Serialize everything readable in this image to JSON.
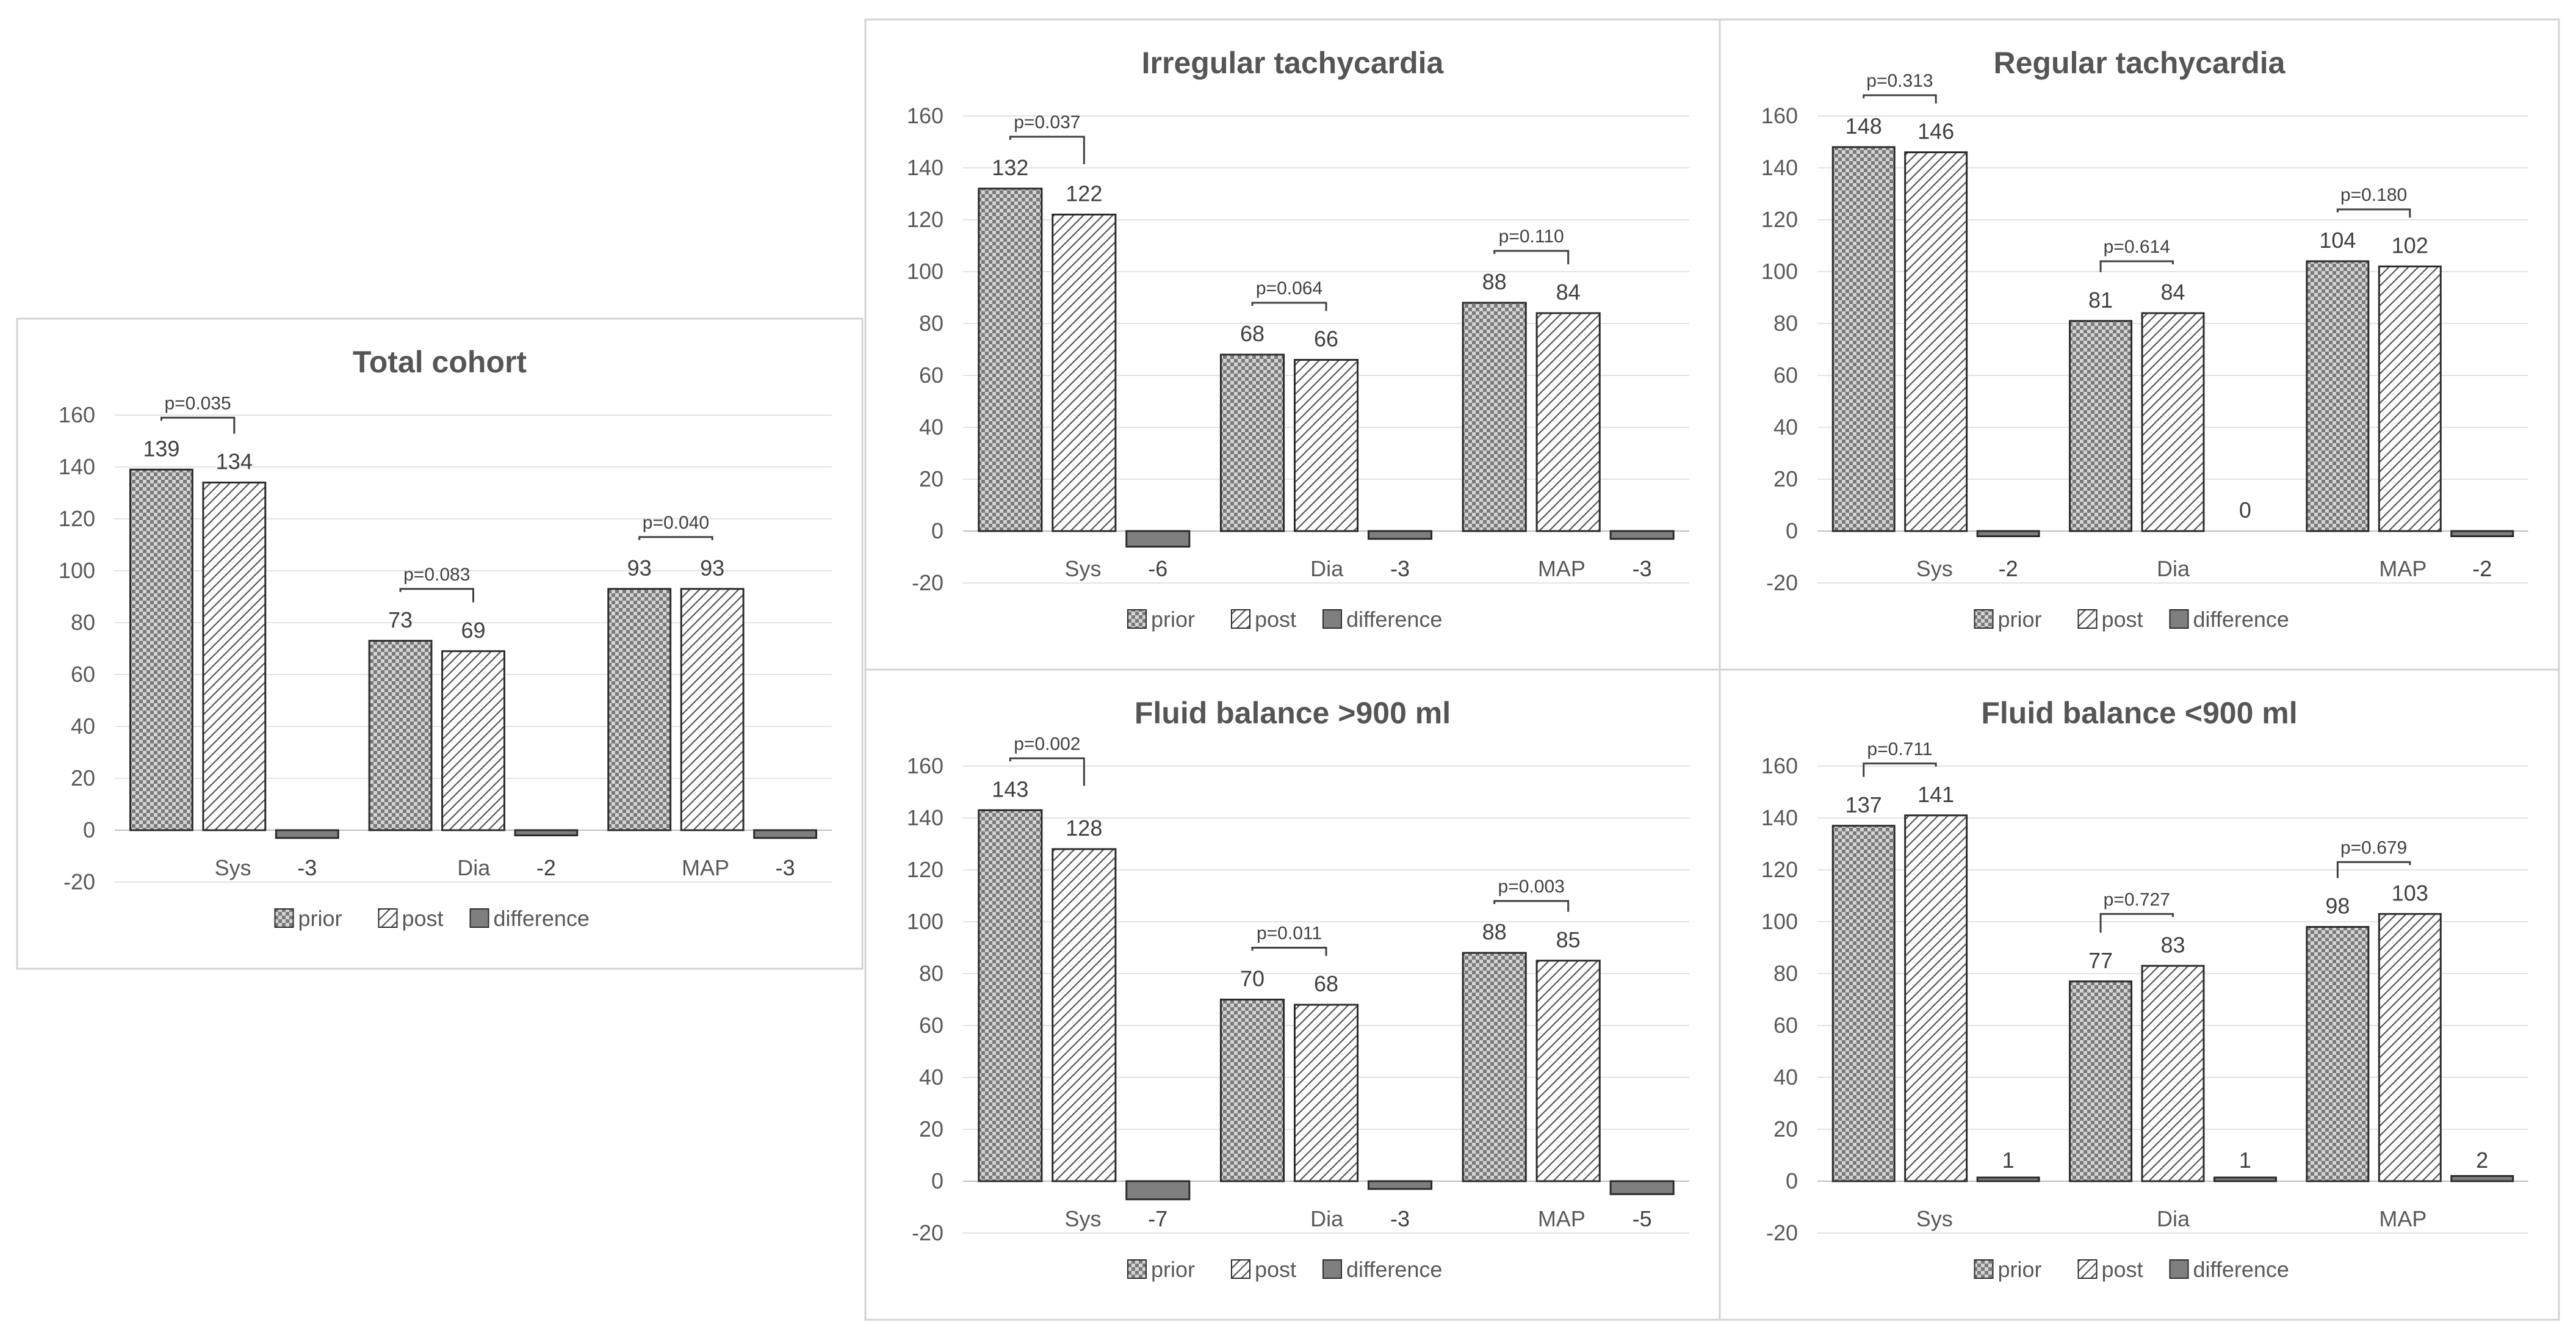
{
  "chart_data": [
    {
      "id": "total",
      "type": "bar",
      "title": "Total cohort",
      "categories": [
        "Sys",
        "Dia",
        "MAP"
      ],
      "series": [
        {
          "name": "prior",
          "values": [
            139,
            73,
            93
          ]
        },
        {
          "name": "post",
          "values": [
            134,
            69,
            93
          ]
        },
        {
          "name": "difference",
          "values": [
            -3,
            -2,
            -3
          ]
        }
      ],
      "p_values": [
        "p=0.035",
        "p=0.083",
        "p=0.040"
      ],
      "ylim": [
        -20,
        160
      ],
      "yticks": [
        -20,
        0,
        20,
        40,
        60,
        80,
        100,
        120,
        140,
        160
      ],
      "grid": true,
      "legend": "bottom",
      "xlabel": "",
      "ylabel": ""
    },
    {
      "id": "irregular",
      "type": "bar",
      "title": "Irregular tachycardia",
      "categories": [
        "Sys",
        "Dia",
        "MAP"
      ],
      "series": [
        {
          "name": "prior",
          "values": [
            132,
            68,
            88
          ]
        },
        {
          "name": "post",
          "values": [
            122,
            66,
            84
          ]
        },
        {
          "name": "difference",
          "values": [
            -6,
            -3,
            -3
          ]
        }
      ],
      "p_values": [
        "p=0.037",
        "p=0.064",
        "p=0.110"
      ],
      "ylim": [
        -20,
        160
      ],
      "yticks": [
        -20,
        0,
        20,
        40,
        60,
        80,
        100,
        120,
        140,
        160
      ],
      "grid": true,
      "legend": "bottom",
      "xlabel": "",
      "ylabel": ""
    },
    {
      "id": "regular",
      "type": "bar",
      "title": "Regular tachycardia",
      "categories": [
        "Sys",
        "Dia",
        "MAP"
      ],
      "series": [
        {
          "name": "prior",
          "values": [
            148,
            81,
            104
          ]
        },
        {
          "name": "post",
          "values": [
            146,
            84,
            102
          ]
        },
        {
          "name": "difference",
          "values": [
            -2,
            0,
            -2
          ]
        }
      ],
      "p_values": [
        "p=0.313",
        "p=0.614",
        "p=0.180"
      ],
      "ylim": [
        -20,
        160
      ],
      "yticks": [
        -20,
        0,
        20,
        40,
        60,
        80,
        100,
        120,
        140,
        160
      ],
      "grid": true,
      "legend": "bottom",
      "xlabel": "",
      "ylabel": ""
    },
    {
      "id": "fluid_high",
      "type": "bar",
      "title": "Fluid balance >900 ml",
      "categories": [
        "Sys",
        "Dia",
        "MAP"
      ],
      "series": [
        {
          "name": "prior",
          "values": [
            143,
            70,
            88
          ]
        },
        {
          "name": "post",
          "values": [
            128,
            68,
            85
          ]
        },
        {
          "name": "difference",
          "values": [
            -7,
            -3,
            -5
          ]
        }
      ],
      "p_values": [
        "p=0.002",
        "p=0.011",
        "p=0.003"
      ],
      "ylim": [
        -20,
        160
      ],
      "yticks": [
        -20,
        0,
        20,
        40,
        60,
        80,
        100,
        120,
        140,
        160
      ],
      "grid": true,
      "legend": "bottom",
      "xlabel": "",
      "ylabel": ""
    },
    {
      "id": "fluid_low",
      "type": "bar",
      "title": "Fluid balance <900 ml",
      "categories": [
        "Sys",
        "Dia",
        "MAP"
      ],
      "series": [
        {
          "name": "prior",
          "values": [
            137,
            77,
            98
          ]
        },
        {
          "name": "post",
          "values": [
            141,
            83,
            103
          ]
        },
        {
          "name": "difference",
          "values": [
            1,
            1,
            2
          ]
        }
      ],
      "p_values": [
        "p=0.711",
        "p=0.727",
        "p=0.679"
      ],
      "ylim": [
        -20,
        160
      ],
      "yticks": [
        -20,
        0,
        20,
        40,
        60,
        80,
        100,
        120,
        140,
        160
      ],
      "grid": true,
      "legend": "bottom",
      "xlabel": "",
      "ylabel": ""
    }
  ]
}
